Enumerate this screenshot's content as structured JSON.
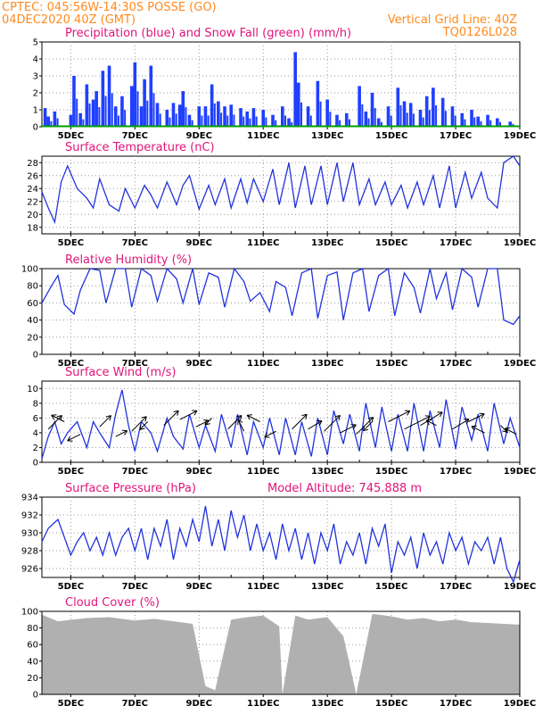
{
  "header": {
    "line1_left": "CPTEC:   045:56W-14:30S   POSSE (GO)",
    "line2_left": "04DEC2020 40Z (GMT)",
    "line2_right": "Vertical Grid Line: 40Z",
    "line3_right": "TQ0126L028"
  },
  "colors": {
    "header": "#ff8a1e",
    "title": "#e0157b",
    "precip": "#1f3fff",
    "snow": "#00a000",
    "line": "#2233dd",
    "cloud": "#b0b0b0"
  },
  "x_axis": {
    "labels": [
      "5DEC",
      "7DEC",
      "9DEC",
      "11DEC",
      "13DEC",
      "15DEC",
      "17DEC",
      "19DEC"
    ],
    "label_days": [
      5,
      7,
      9,
      11,
      13,
      15,
      17,
      19
    ],
    "range_days": [
      4.1,
      19.0
    ]
  },
  "chart_data": [
    {
      "id": "precip",
      "type": "bar",
      "title": "Precipitation (blue) and Snow Fall (green) (mm/h)",
      "ylim": [
        0,
        5
      ],
      "yticks": [
        0,
        1,
        2,
        3,
        4,
        5
      ],
      "series": [
        {
          "name": "Precipitation",
          "color": "#1f3fff",
          "x_days": [
            4.2,
            4.3,
            4.5,
            5.0,
            5.1,
            5.3,
            5.5,
            5.7,
            5.8,
            6.0,
            6.2,
            6.4,
            6.6,
            6.9,
            7.0,
            7.2,
            7.3,
            7.5,
            7.7,
            8.0,
            8.2,
            8.4,
            8.5,
            8.7,
            9.0,
            9.2,
            9.4,
            9.6,
            9.8,
            10.0,
            10.3,
            10.5,
            10.7,
            11.0,
            11.3,
            11.6,
            11.8,
            12.0,
            12.1,
            12.4,
            12.7,
            13.0,
            13.3,
            13.6,
            14.0,
            14.2,
            14.4,
            14.6,
            14.9,
            15.2,
            15.4,
            15.6,
            15.9,
            16.1,
            16.3,
            16.6,
            16.9,
            17.2,
            17.5,
            17.7,
            18.0,
            18.3,
            18.7
          ],
          "values": [
            1.1,
            0.6,
            0.9,
            0.7,
            3.0,
            0.8,
            2.5,
            1.6,
            2.1,
            3.3,
            3.6,
            1.2,
            1.8,
            2.4,
            3.8,
            1.2,
            2.8,
            3.6,
            1.4,
            1.0,
            1.4,
            1.3,
            2.1,
            0.7,
            1.2,
            1.2,
            2.5,
            1.5,
            1.2,
            1.3,
            1.1,
            0.9,
            1.1,
            1.0,
            0.7,
            1.2,
            0.5,
            4.4,
            2.6,
            1.2,
            2.7,
            1.6,
            0.7,
            0.8,
            2.4,
            0.9,
            2.0,
            0.5,
            1.2,
            2.3,
            1.5,
            1.4,
            1.0,
            1.8,
            2.3,
            1.7,
            1.2,
            0.8,
            1.0,
            0.6,
            0.7,
            0.5,
            0.3
          ]
        },
        {
          "name": "Snow Fall",
          "color": "#00a000",
          "x_days": [
            4.1,
            19.0
          ],
          "values": [
            0,
            0
          ]
        }
      ]
    },
    {
      "id": "temp",
      "type": "line",
      "title": "Surface Temperature (nC)",
      "ylim": [
        17,
        29
      ],
      "yticks": [
        18,
        20,
        22,
        24,
        26,
        28
      ],
      "x_days": [
        4.1,
        4.3,
        4.5,
        4.7,
        4.9,
        5.2,
        5.5,
        5.7,
        5.9,
        6.2,
        6.5,
        6.7,
        7.0,
        7.3,
        7.5,
        7.7,
        8.0,
        8.3,
        8.5,
        8.7,
        9.0,
        9.3,
        9.5,
        9.8,
        10.0,
        10.3,
        10.5,
        10.7,
        11.0,
        11.3,
        11.5,
        11.8,
        12.0,
        12.3,
        12.5,
        12.8,
        13.0,
        13.3,
        13.5,
        13.8,
        14.0,
        14.3,
        14.5,
        14.8,
        15.0,
        15.3,
        15.5,
        15.8,
        16.0,
        16.3,
        16.5,
        16.8,
        17.0,
        17.3,
        17.5,
        17.8,
        18.0,
        18.3,
        18.5,
        18.8,
        19.0
      ],
      "values": [
        23.5,
        21.0,
        18.8,
        25.0,
        27.5,
        24.0,
        22.5,
        21.0,
        25.5,
        21.5,
        20.5,
        24.0,
        21.0,
        24.5,
        23.0,
        21.0,
        25.0,
        21.5,
        24.5,
        26.0,
        20.8,
        24.5,
        21.5,
        25.5,
        21.0,
        25.5,
        21.8,
        25.5,
        22.0,
        27.0,
        21.5,
        28.0,
        21.0,
        27.5,
        21.5,
        27.5,
        21.5,
        28.0,
        22.0,
        28.0,
        21.5,
        25.5,
        21.5,
        25.0,
        21.5,
        24.5,
        21.0,
        25.0,
        21.5,
        26.0,
        21.0,
        27.5,
        21.0,
        26.5,
        22.5,
        26.5,
        22.5,
        21.0,
        28.0,
        29.0,
        27.5
      ]
    },
    {
      "id": "rh",
      "type": "line",
      "title": "Relative Humidity (%)",
      "ylim": [
        0,
        100
      ],
      "yticks": [
        0,
        20,
        40,
        60,
        80,
        100
      ],
      "x_days": [
        4.1,
        4.4,
        4.6,
        4.8,
        5.1,
        5.3,
        5.6,
        5.9,
        6.1,
        6.4,
        6.7,
        6.9,
        7.2,
        7.5,
        7.7,
        8.0,
        8.3,
        8.5,
        8.8,
        9.0,
        9.3,
        9.6,
        9.8,
        10.1,
        10.4,
        10.6,
        10.9,
        11.2,
        11.4,
        11.7,
        11.9,
        12.2,
        12.5,
        12.7,
        13.0,
        13.3,
        13.5,
        13.8,
        14.1,
        14.3,
        14.6,
        14.9,
        15.1,
        15.4,
        15.7,
        15.9,
        16.2,
        16.4,
        16.7,
        16.9,
        17.2,
        17.5,
        17.7,
        18.0,
        18.3,
        18.5,
        18.8,
        19.0
      ],
      "values": [
        60,
        80,
        92,
        58,
        47,
        75,
        100,
        98,
        60,
        100,
        100,
        55,
        100,
        92,
        62,
        100,
        88,
        60,
        100,
        58,
        95,
        90,
        55,
        100,
        85,
        62,
        72,
        50,
        85,
        78,
        45,
        95,
        100,
        42,
        92,
        96,
        40,
        95,
        100,
        50,
        92,
        100,
        45,
        95,
        78,
        48,
        100,
        65,
        95,
        52,
        100,
        90,
        55,
        100,
        100,
        40,
        35,
        45
      ]
    },
    {
      "id": "wind",
      "type": "line",
      "title": "Surface Wind (m/s)",
      "ylim": [
        0,
        11
      ],
      "yticks": [
        0,
        2,
        4,
        6,
        8,
        10
      ],
      "x_days": [
        4.1,
        4.3,
        4.5,
        4.7,
        4.9,
        5.2,
        5.5,
        5.7,
        5.9,
        6.2,
        6.4,
        6.6,
        6.8,
        7.0,
        7.2,
        7.5,
        7.7,
        8.0,
        8.2,
        8.5,
        8.7,
        9.0,
        9.2,
        9.5,
        9.7,
        10.0,
        10.2,
        10.5,
        10.7,
        11.0,
        11.2,
        11.5,
        11.7,
        12.0,
        12.2,
        12.5,
        12.7,
        13.0,
        13.2,
        13.5,
        13.7,
        14.0,
        14.2,
        14.5,
        14.7,
        15.0,
        15.2,
        15.5,
        15.7,
        16.0,
        16.2,
        16.5,
        16.7,
        17.0,
        17.2,
        17.5,
        17.7,
        18.0,
        18.2,
        18.5,
        18.7,
        19.0
      ],
      "values": [
        0.5,
        3.5,
        5.5,
        2.5,
        4.0,
        5.5,
        2.0,
        5.5,
        4.0,
        2.0,
        6.5,
        9.8,
        5.0,
        1.5,
        5.5,
        4.0,
        1.5,
        6.0,
        3.5,
        1.8,
        6.5,
        2.0,
        5.0,
        1.5,
        6.5,
        2.0,
        6.5,
        1.0,
        5.5,
        2.0,
        6.0,
        1.0,
        6.0,
        1.0,
        5.5,
        0.8,
        6.0,
        1.0,
        7.0,
        2.5,
        6.5,
        1.5,
        8.0,
        2.0,
        7.5,
        1.5,
        6.5,
        1.5,
        8.0,
        1.5,
        7.0,
        2.0,
        8.5,
        1.8,
        7.5,
        3.0,
        6.5,
        1.5,
        8.0,
        2.5,
        6.0,
        2.0
      ],
      "arrows": {
        "x_days": [
          4.3,
          4.8,
          5.3,
          5.9,
          6.4,
          6.9,
          7.4,
          7.9,
          8.4,
          8.9,
          9.4,
          9.9,
          10.4,
          10.9,
          11.4,
          11.9,
          12.4,
          12.9,
          13.4,
          13.9,
          14.4,
          14.9,
          15.4,
          15.9,
          16.4,
          16.9,
          17.4,
          17.9,
          18.4,
          18.9
        ],
        "y": [
          4.5,
          5.5,
          3.8,
          4.8,
          3.5,
          4.2,
          5.5,
          5.0,
          5.8,
          4.8,
          6.0,
          4.5,
          4.2,
          5.5,
          4.2,
          4.5,
          4.5,
          4.2,
          4.0,
          3.8,
          5.5,
          5.5,
          4.5,
          5.0,
          5.0,
          4.5,
          5.5,
          4.0,
          5.0,
          3.8
        ],
        "dx": [
          1,
          -1,
          -1,
          1,
          1,
          1,
          -0.5,
          1,
          1,
          1,
          -0.5,
          1,
          -0.5,
          -1,
          -1,
          1,
          1,
          1,
          1,
          1,
          -0.5,
          1,
          1,
          1,
          -1,
          1,
          1,
          -1,
          0.5,
          -1
        ],
        "dy": [
          1,
          0.5,
          -0.5,
          1,
          0.5,
          1,
          -0.5,
          1,
          0.5,
          0.5,
          -0.5,
          1,
          1,
          0.5,
          -0.5,
          1,
          0.6,
          1,
          0.5,
          1,
          -0.5,
          0.5,
          0.5,
          0.6,
          0.5,
          0.6,
          0.5,
          0.5,
          -0.5,
          0.5
        ],
        "len": [
          1.2,
          0.9,
          0.9,
          1.0,
          0.8,
          1.3,
          0.7,
          1.3,
          1.2,
          0.9,
          0.6,
          1.2,
          0.8,
          0.9,
          0.8,
          1.3,
          1.0,
          1.4,
          1.1,
          1.5,
          0.8,
          1.5,
          1.8,
          1.6,
          0.7,
          1.2,
          1.1,
          0.9,
          0.6,
          0.8
        ]
      }
    },
    {
      "id": "pres",
      "type": "line",
      "title": "Surface Pressure (hPa)",
      "subtitle": "Model Altitude: 745.888 m",
      "ylim": [
        925,
        934
      ],
      "yticks": [
        926,
        928,
        930,
        932,
        934
      ],
      "x_days": [
        4.1,
        4.3,
        4.6,
        4.8,
        5.0,
        5.2,
        5.4,
        5.6,
        5.8,
        6.0,
        6.2,
        6.4,
        6.6,
        6.8,
        7.0,
        7.2,
        7.4,
        7.6,
        7.8,
        8.0,
        8.2,
        8.4,
        8.6,
        8.8,
        9.0,
        9.2,
        9.4,
        9.6,
        9.8,
        10.0,
        10.2,
        10.4,
        10.6,
        10.8,
        11.0,
        11.2,
        11.4,
        11.6,
        11.8,
        12.0,
        12.2,
        12.4,
        12.6,
        12.8,
        13.0,
        13.2,
        13.4,
        13.6,
        13.8,
        14.0,
        14.2,
        14.4,
        14.6,
        14.8,
        15.0,
        15.2,
        15.4,
        15.6,
        15.8,
        16.0,
        16.2,
        16.4,
        16.6,
        16.8,
        17.0,
        17.2,
        17.4,
        17.6,
        17.8,
        18.0,
        18.2,
        18.4,
        18.6,
        18.8,
        19.0
      ],
      "values": [
        929.0,
        930.5,
        931.5,
        929.5,
        927.5,
        929.0,
        930.0,
        928.0,
        929.5,
        927.5,
        930.0,
        927.5,
        929.5,
        930.5,
        928.0,
        930.5,
        927.0,
        930.5,
        928.5,
        931.5,
        927.0,
        930.5,
        928.5,
        931.5,
        929.0,
        933.0,
        928.5,
        931.5,
        928.0,
        932.5,
        929.5,
        932.0,
        928.0,
        931.0,
        928.0,
        930.0,
        927.0,
        931.0,
        928.0,
        930.5,
        927.0,
        930.0,
        926.5,
        930.0,
        928.0,
        931.0,
        926.5,
        929.0,
        927.5,
        930.0,
        926.5,
        930.5,
        928.5,
        931.0,
        925.5,
        929.0,
        927.5,
        929.5,
        926.0,
        930.0,
        927.5,
        929.0,
        926.5,
        930.0,
        928.0,
        929.5,
        926.5,
        929.0,
        928.0,
        929.5,
        926.5,
        929.5,
        926.0,
        924.5,
        927.0
      ]
    },
    {
      "id": "cloud",
      "type": "bar",
      "title": "Cloud Cover (%)",
      "ylim": [
        0,
        100
      ],
      "yticks": [
        0,
        20,
        40,
        60,
        80,
        100
      ],
      "segments": {
        "x_days": [
          4.1,
          4.6,
          5.5,
          6.2,
          7.0,
          7.6,
          8.2,
          8.8,
          9.2,
          9.5,
          10.0,
          10.5,
          11.0,
          11.5,
          11.6,
          12.0,
          12.4,
          13.0,
          13.5,
          13.9,
          14.4,
          15.0,
          15.5,
          16.0,
          16.5,
          17.0,
          17.5,
          18.0,
          18.5,
          19.0
        ],
        "values": [
          96,
          88,
          92,
          93,
          89,
          91,
          88,
          85,
          10,
          5,
          90,
          93,
          95,
          82,
          0,
          95,
          90,
          93,
          70,
          0,
          97,
          94,
          90,
          92,
          88,
          90,
          87,
          86,
          85,
          84
        ]
      }
    }
  ]
}
